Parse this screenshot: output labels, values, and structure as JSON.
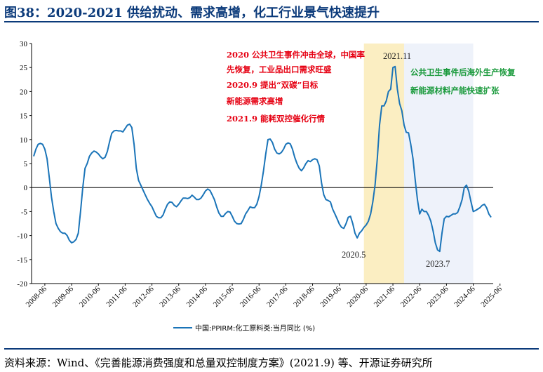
{
  "header": {
    "title": "图38：2020-2021 供给扰动、需求高增，化工行业景气快速提升"
  },
  "footer": {
    "source": "资料来源：Wind、《完善能源消费强度和总量双控制度方案》(2021.9) 等、开源证券研究所"
  },
  "chart_data": {
    "type": "line",
    "title": "",
    "xlabel": "",
    "ylabel": "",
    "ylim": [
      -20,
      30
    ],
    "yticks": [
      30,
      25,
      20,
      15,
      10,
      5,
      0,
      -5,
      -10,
      -15,
      -20
    ],
    "xticks": [
      "2008-06",
      "2009-06",
      "2010-06",
      "2011-06",
      "2012-06",
      "2013-06",
      "2014-06",
      "2015-06",
      "2016-06",
      "2017-06",
      "2018-06",
      "2019-06",
      "2020-06",
      "2021-06",
      "2022-06",
      "2023-06",
      "2024-06",
      "2025-06"
    ],
    "grid": false,
    "legend_position": "bottom-center",
    "series": [
      {
        "name": "中国:PPIRM:化工原料类:当月同比 (%)",
        "color": "#1a74b8",
        "start": "2008-01",
        "frequency": "monthly",
        "values": [
          6.5,
          8,
          9,
          9.2,
          9,
          8,
          6,
          2,
          -2,
          -5,
          -7.5,
          -8.5,
          -9.2,
          -9.5,
          -9.5,
          -10,
          -11,
          -11.5,
          -11.3,
          -10.8,
          -9.5,
          -5,
          0,
          4,
          5,
          6.5,
          7.2,
          7.6,
          7.4,
          7,
          6.4,
          6,
          6.3,
          7.5,
          9.5,
          11.3,
          11.8,
          11.9,
          11.8,
          11.8,
          11.6,
          12.3,
          13,
          13.2,
          12.5,
          9,
          4,
          1.5,
          0.5,
          -0.5,
          -1.5,
          -2.5,
          -3.3,
          -4,
          -5,
          -6,
          -6.3,
          -6.3,
          -5.7,
          -4.5,
          -3.5,
          -3,
          -3.1,
          -3.7,
          -4,
          -3.5,
          -2.8,
          -2.2,
          -2.2,
          -2.3,
          -2.1,
          -1.6,
          -2,
          -2.5,
          -2.5,
          -2.2,
          -1.5,
          -0.7,
          -0.3,
          -0.6,
          -1.5,
          -2.5,
          -4,
          -5.3,
          -6,
          -6,
          -5.4,
          -5,
          -5.1,
          -6,
          -7,
          -7.5,
          -7.6,
          -7.5,
          -6.6,
          -5.5,
          -4.8,
          -4,
          -4.2,
          -4.2,
          -3.5,
          -1.9,
          0.5,
          3.5,
          7,
          10,
          10.1,
          9.4,
          8,
          7.2,
          7,
          7.3,
          8,
          9,
          9.3,
          9.1,
          8,
          6.3,
          5,
          4,
          3.5,
          4.1,
          5,
          5.6,
          5.4,
          5.8,
          6,
          5.8,
          4.5,
          1,
          -1.5,
          -2.5,
          -2.7,
          -3,
          -4.5,
          -5.5,
          -6.5,
          -7.6,
          -8.3,
          -8.5,
          -7.5,
          -6.2,
          -6,
          -7.5,
          -9.5,
          -10.5,
          -9.5,
          -9,
          -8.3,
          -7.8,
          -7,
          -5.5,
          -3,
          0.5,
          6,
          13,
          17,
          17,
          18,
          20,
          20.5,
          25,
          25.2,
          20.5,
          17.5,
          16,
          13,
          11.5,
          11.4,
          9,
          6,
          1.5,
          -2.5,
          -5.5,
          -4.5,
          -5,
          -5,
          -5.8,
          -7,
          -9,
          -11.5,
          -13,
          -13.3,
          -9.5,
          -6.5,
          -6,
          -6.1,
          -5.8,
          -5.5,
          -5.5,
          -5.2,
          -4,
          -2.5,
          0,
          0.5,
          -0.8,
          -3,
          -5,
          -4.8,
          -4.5,
          -4.2,
          -3.7,
          -3.5,
          -4.2,
          -5.5,
          -6.2
        ]
      }
    ],
    "shaded_regions": [
      {
        "from": "2020-05",
        "to": "2021-11",
        "color": "#fbeec2"
      },
      {
        "from": "2021-11",
        "to": "2024-06",
        "color": "#eef2fa"
      }
    ],
    "annotations": {
      "red_lines": [
        "2020 公共卫生事件冲击全球，中国率",
        "先恢复，工业品出口需求旺盛",
        "2020.9 提出“双碳”目标",
        "新能源需求高增",
        "2021.9 能耗双控催化行情"
      ],
      "green_lines": [
        "公共卫生事件后海外生产恢复",
        "新能源材料产能快速扩张"
      ],
      "points": [
        {
          "label": "2021.11"
        },
        {
          "label": "2020.5"
        },
        {
          "label": "2023.7"
        }
      ]
    }
  }
}
